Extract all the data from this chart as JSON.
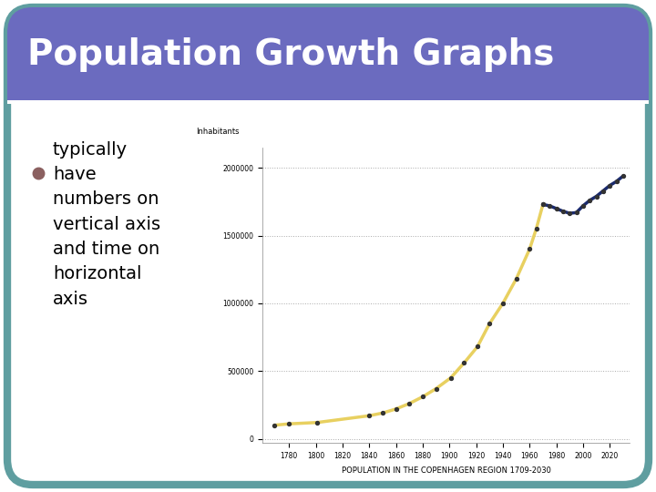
{
  "title": "Population Growth Graphs",
  "title_bg_color": "#6b6bbf",
  "title_text_color": "#ffffff",
  "slide_bg_color": "#ffffff",
  "border_color": "#5f9ea0",
  "bullet_dot_color": "#8b6060",
  "bullet_text": "typically\nhave\nnumbers on\nvertical axis\nand time on\nhorizontal\naxis",
  "bullet_color": "#000000",
  "xlabel": "POPULATION IN THE COPENHAGEN REGION 1709-2030",
  "ylabel": "Inhabitants",
  "ytick_labels": [
    "0",
    "500000",
    "1000000",
    "1500000",
    "2000000"
  ],
  "yticks": [
    0,
    500000,
    1000000,
    1500000,
    2000000
  ],
  "xticks": [
    1780,
    1800,
    1820,
    1840,
    1860,
    1880,
    1900,
    1920,
    1940,
    1960,
    1980,
    2000,
    2020
  ],
  "xlim": [
    1760,
    2035
  ],
  "ylim": [
    -30000,
    2150000
  ],
  "yellow_x": [
    1769,
    1780,
    1801,
    1840,
    1850,
    1860,
    1870,
    1880,
    1890,
    1901,
    1911,
    1921,
    1930,
    1940,
    1950,
    1960,
    1965,
    1970
  ],
  "yellow_y": [
    100000,
    110000,
    120000,
    170000,
    190000,
    220000,
    260000,
    310000,
    370000,
    450000,
    560000,
    680000,
    850000,
    1000000,
    1180000,
    1400000,
    1550000,
    1730000
  ],
  "blue_x": [
    1970,
    1975,
    1980,
    1985,
    1990,
    1995,
    2000,
    2005,
    2010,
    2015,
    2020,
    2025,
    2030
  ],
  "blue_y": [
    1730000,
    1720000,
    1700000,
    1680000,
    1665000,
    1670000,
    1720000,
    1760000,
    1790000,
    1830000,
    1870000,
    1900000,
    1940000
  ],
  "yellow_color": "#e8d060",
  "blue_color": "#1a2a6e",
  "dot_color": "#333333",
  "grid_color": "#aaaaaa",
  "graph_bg_color": "#ffffff",
  "line_width": 2.5,
  "separator_color": "#ffffff"
}
